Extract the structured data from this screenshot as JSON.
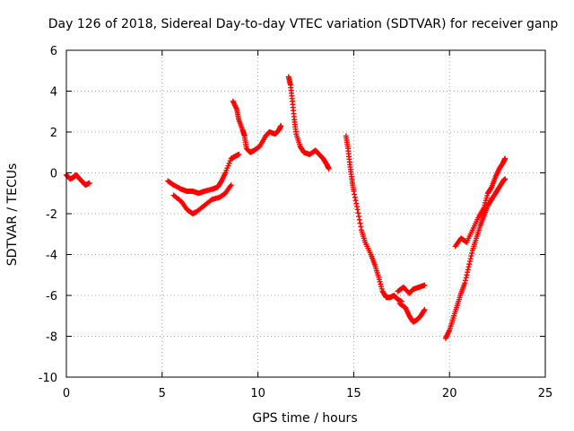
{
  "chart_data": {
    "type": "scatter",
    "title": "Day 126 of 2018, Sidereal Day-to-day VTEC variation (SDTVAR) for receiver ganp",
    "xlabel": "GPS time / hours",
    "ylabel": "SDTVAR / TECUs",
    "xlim": [
      0,
      25
    ],
    "ylim": [
      -10,
      6
    ],
    "x_ticks": [
      0,
      5,
      10,
      15,
      20,
      25
    ],
    "y_ticks": [
      -10,
      -8,
      -6,
      -4,
      -2,
      0,
      2,
      4,
      6
    ],
    "x_tick_labels": [
      "0",
      "5",
      "10",
      "15",
      "20",
      "25"
    ],
    "y_tick_labels": [
      "-10",
      "-8",
      "-6",
      "-4",
      "-2",
      "0",
      "2",
      "4",
      "6"
    ],
    "grid": true,
    "legend": "none",
    "marker": "plus",
    "series_color": "#ff0000",
    "series": [
      {
        "x": [
          0.0,
          0.2,
          0.4,
          0.5,
          0.6,
          0.8,
          1.0,
          1.2
        ],
        "y": [
          -0.1,
          -0.3,
          -0.2,
          -0.1,
          -0.2,
          -0.4,
          -0.6,
          -0.5
        ]
      },
      {
        "x": [
          5.3,
          5.6,
          6.0,
          6.3,
          6.6,
          6.9,
          7.2,
          7.6,
          7.9,
          8.1,
          8.3,
          8.6,
          8.8,
          9.0
        ],
        "y": [
          -0.4,
          -0.6,
          -0.8,
          -0.9,
          -0.9,
          -1.0,
          -0.9,
          -0.8,
          -0.7,
          -0.4,
          0.0,
          0.7,
          0.8,
          0.9
        ]
      },
      {
        "x": [
          5.6,
          6.0,
          6.3,
          6.6,
          6.8,
          7.2,
          7.6,
          8.0,
          8.3,
          8.6
        ],
        "y": [
          -1.1,
          -1.4,
          -1.8,
          -2.0,
          -1.9,
          -1.6,
          -1.3,
          -1.2,
          -1.0,
          -0.6
        ]
      },
      {
        "x": [
          8.7,
          8.9,
          9.0,
          9.2,
          9.3,
          9.4,
          9.6,
          9.8,
          10.1,
          10.4,
          10.6,
          10.9,
          11.1,
          11.2
        ],
        "y": [
          3.5,
          3.1,
          2.6,
          2.1,
          1.8,
          1.2,
          1.0,
          1.1,
          1.3,
          1.8,
          2.0,
          1.9,
          2.1,
          2.3
        ]
      },
      {
        "x": [
          11.6,
          11.7,
          11.8,
          11.9,
          12.0,
          12.2,
          12.4,
          12.7,
          13.0,
          13.2,
          13.4,
          13.6,
          13.7
        ],
        "y": [
          4.7,
          4.3,
          3.5,
          2.6,
          1.9,
          1.3,
          1.0,
          0.9,
          1.1,
          0.9,
          0.7,
          0.4,
          0.2
        ]
      },
      {
        "x": [
          14.6,
          14.7,
          14.8,
          14.9,
          15.0,
          15.2,
          15.4,
          15.6,
          15.9,
          16.1,
          16.3,
          16.5,
          16.7,
          16.9,
          17.1,
          17.3,
          17.5
        ],
        "y": [
          1.8,
          1.2,
          0.4,
          -0.3,
          -0.9,
          -1.8,
          -2.8,
          -3.4,
          -4.0,
          -4.5,
          -5.1,
          -5.8,
          -6.1,
          -6.1,
          -6.0,
          -6.2,
          -6.3
        ]
      },
      {
        "x": [
          17.3,
          17.6,
          17.9,
          18.1,
          18.4,
          18.7
        ],
        "y": [
          -5.8,
          -5.6,
          -5.9,
          -5.7,
          -5.6,
          -5.5
        ]
      },
      {
        "x": [
          17.4,
          17.7,
          17.9,
          18.1,
          18.3,
          18.5,
          18.7
        ],
        "y": [
          -6.4,
          -6.6,
          -7.0,
          -7.3,
          -7.2,
          -7.0,
          -6.7
        ]
      },
      {
        "x": [
          19.8,
          20.0,
          20.2,
          20.4,
          20.6,
          20.8,
          21.0,
          21.2,
          21.4,
          21.6,
          21.8,
          22.0,
          22.2,
          22.4,
          22.6,
          22.8,
          22.9
        ],
        "y": [
          -8.1,
          -7.7,
          -7.1,
          -6.5,
          -5.9,
          -5.4,
          -4.6,
          -3.8,
          -3.2,
          -2.6,
          -2.1,
          -1.6,
          -1.3,
          -1.0,
          -0.7,
          -0.4,
          -0.3
        ]
      },
      {
        "x": [
          20.3,
          20.6,
          20.9,
          21.2,
          21.5,
          21.8,
          22.0,
          22.2,
          22.4,
          22.6,
          22.8,
          22.9
        ],
        "y": [
          -3.6,
          -3.2,
          -3.4,
          -2.8,
          -2.2,
          -1.7,
          -1.0,
          -0.7,
          -0.2,
          0.2,
          0.5,
          0.7
        ]
      }
    ]
  }
}
